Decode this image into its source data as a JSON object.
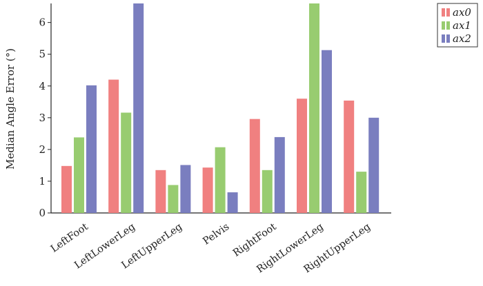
{
  "chart_data": {
    "type": "bar",
    "categories": [
      "LeftFoot",
      "LeftLowerLeg",
      "LeftUpperLeg",
      "Pelvis",
      "RightFoot",
      "RightLowerLeg",
      "RightUpperLeg"
    ],
    "series": [
      {
        "name": "ax0",
        "color": "#f08080",
        "values": [
          1.48,
          4.2,
          1.35,
          1.43,
          2.96,
          3.6,
          3.54
        ]
      },
      {
        "name": "ax1",
        "color": "#98cc70",
        "values": [
          2.38,
          3.16,
          0.88,
          2.07,
          1.35,
          6.6,
          1.3
        ]
      },
      {
        "name": "ax2",
        "color": "#7a7ebf",
        "values": [
          4.02,
          6.6,
          1.51,
          0.65,
          2.39,
          5.13,
          3.0
        ]
      }
    ],
    "ylabel": "Median Angle Error (°)",
    "ylim": [
      0,
      6.6
    ],
    "yticks": [
      0,
      1,
      2,
      3,
      4,
      5,
      6
    ],
    "legend_position": "top-right",
    "grid": false
  }
}
